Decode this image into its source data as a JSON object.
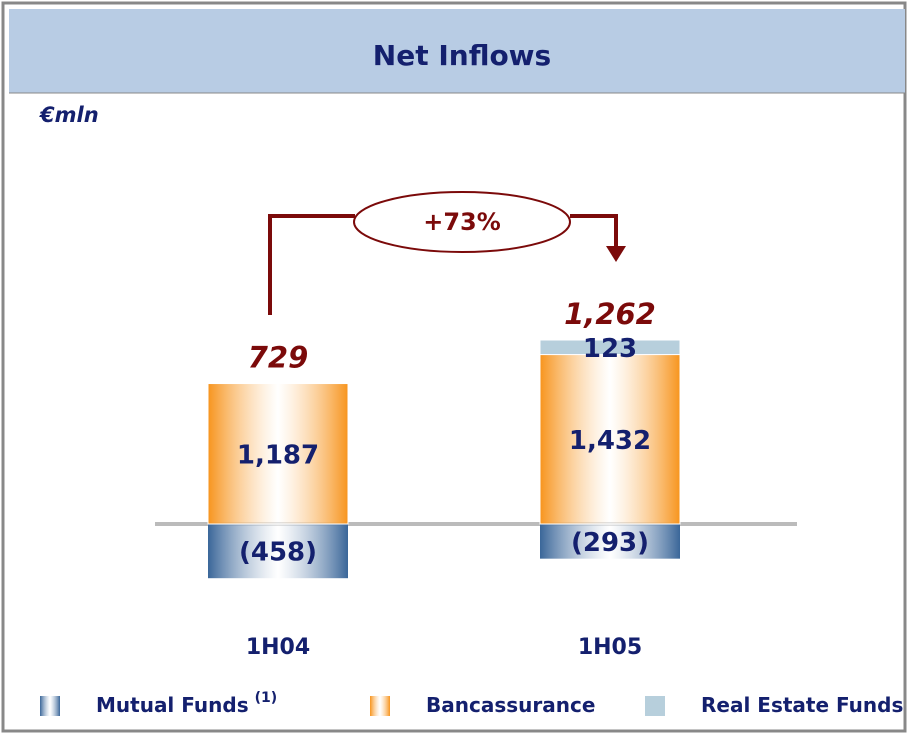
{
  "chart_data": {
    "type": "stacked-bar",
    "title": "Net Inflows",
    "unit_label": "€mln",
    "categories": [
      "1H04",
      "1H05"
    ],
    "series": [
      {
        "name": "Mutual Funds",
        "name_note": "(1)",
        "color": "#3a6699",
        "values": [
          -458,
          -293
        ],
        "value_labels": [
          "(458)",
          "(293)"
        ]
      },
      {
        "name": "Bancassurance",
        "color": "#f7941d",
        "values": [
          1187,
          1432
        ],
        "value_labels": [
          "1,187",
          "1,432"
        ]
      },
      {
        "name": "Real Estate Funds",
        "color": "#b7cfdc",
        "values": [
          null,
          123
        ],
        "value_labels": [
          null,
          "123"
        ]
      }
    ],
    "totals": [
      729,
      1262
    ],
    "total_labels": [
      "729",
      "1,262"
    ],
    "growth_annotation": "+73%"
  }
}
